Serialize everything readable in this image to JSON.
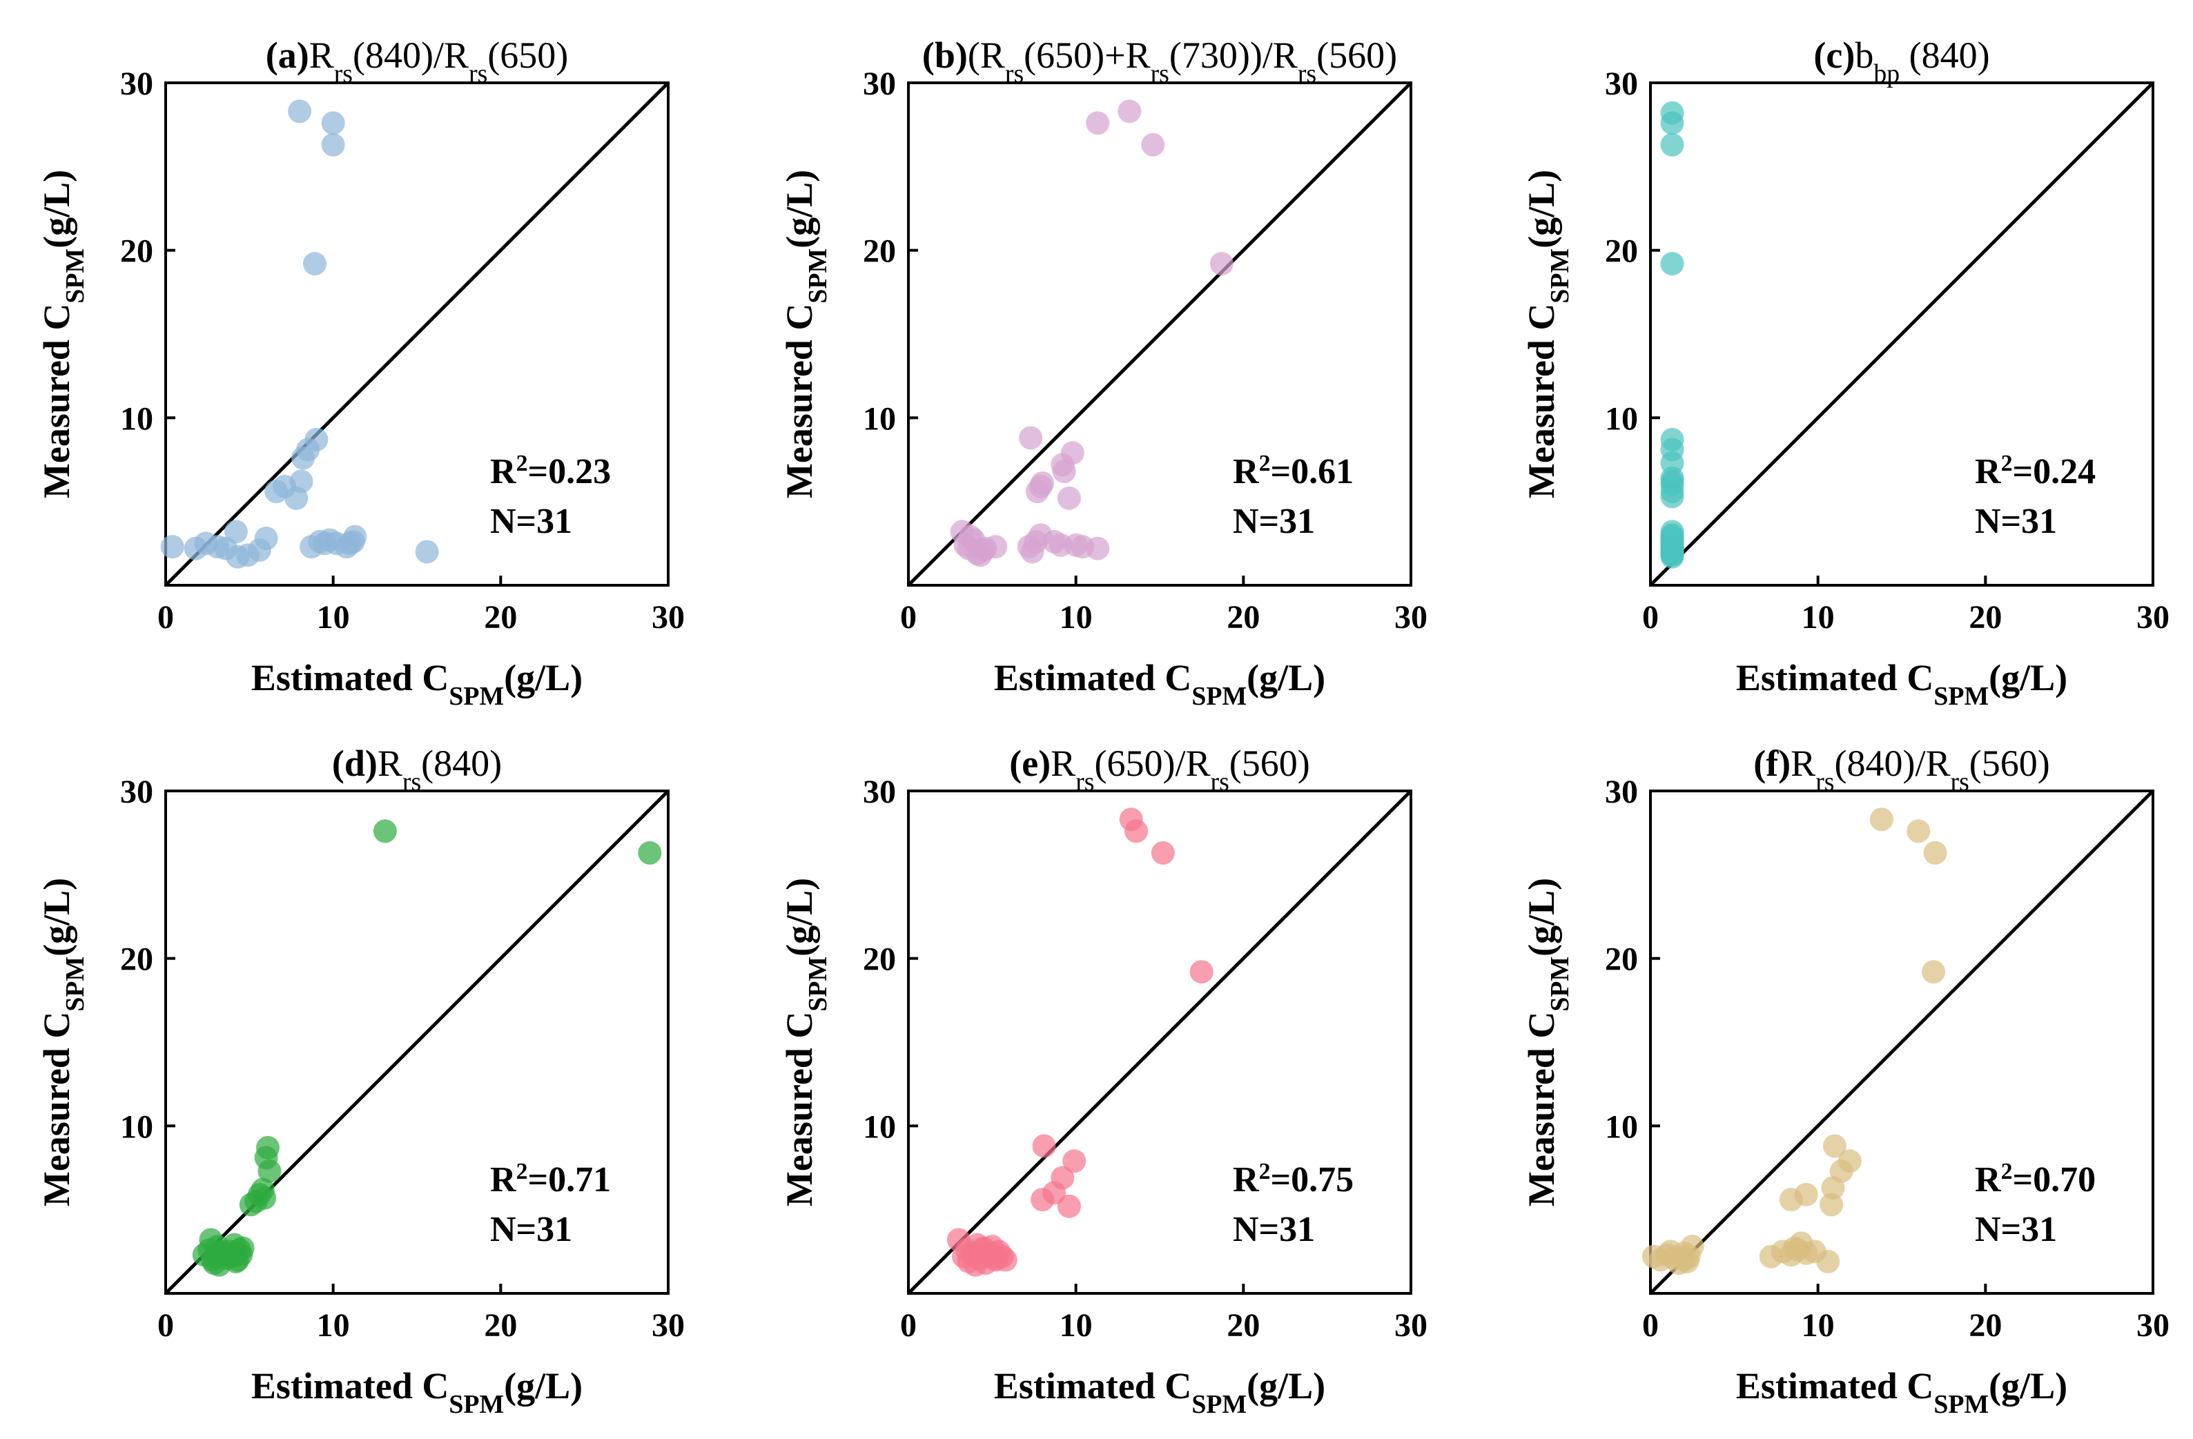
{
  "figure": {
    "x_axis_label": {
      "main": "Estimated C",
      "sub": "SPM",
      "tail": "(g/L)"
    },
    "y_axis_label": {
      "main": "Measured C",
      "sub": "SPM",
      "tail": "(g/L)"
    }
  },
  "chart_data": [
    {
      "id": "a",
      "type": "scatter",
      "title": [
        {
          "t": "(a)",
          "b": true
        },
        {
          "t": "R"
        },
        {
          "t": "rs",
          "sub": true
        },
        {
          "t": "(840)/R"
        },
        {
          "t": "rs",
          "sub": true
        },
        {
          "t": "(650)"
        }
      ],
      "r2": "0.23",
      "n": "31",
      "color": "#8fb5d9",
      "xlim": [
        0,
        30
      ],
      "ylim": [
        0,
        30
      ],
      "xticks": [
        0,
        10,
        20,
        30
      ],
      "yticks": [
        10,
        20,
        30
      ],
      "points": [
        [
          0.4,
          2.3
        ],
        [
          1.8,
          2.2
        ],
        [
          2.4,
          2.5
        ],
        [
          3.1,
          2.3
        ],
        [
          3.6,
          2.2
        ],
        [
          4.2,
          3.2
        ],
        [
          4.3,
          1.7
        ],
        [
          4.9,
          1.8
        ],
        [
          5.6,
          2.1
        ],
        [
          6.0,
          2.8
        ],
        [
          6.6,
          5.6
        ],
        [
          7.1,
          5.9
        ],
        [
          7.8,
          5.2
        ],
        [
          8.1,
          6.2
        ],
        [
          8.2,
          7.6
        ],
        [
          8.5,
          8.1
        ],
        [
          8.7,
          2.3
        ],
        [
          9.0,
          8.7
        ],
        [
          9.2,
          2.6
        ],
        [
          9.8,
          2.7
        ],
        [
          10.2,
          2.5
        ],
        [
          10.8,
          2.3
        ],
        [
          11.0,
          2.5
        ],
        [
          11.2,
          2.6
        ],
        [
          11.3,
          2.9
        ],
        [
          15.6,
          2.0
        ],
        [
          8.0,
          28.3
        ],
        [
          10.0,
          27.6
        ],
        [
          10.0,
          26.3
        ],
        [
          8.9,
          19.2
        ],
        [
          9.5,
          2.5
        ]
      ]
    },
    {
      "id": "b",
      "type": "scatter",
      "title": [
        {
          "t": "(b)",
          "b": true
        },
        {
          "t": "(R"
        },
        {
          "t": "rs",
          "sub": true
        },
        {
          "t": "(650)+R"
        },
        {
          "t": "rs",
          "sub": true
        },
        {
          "t": "(730))/R"
        },
        {
          "t": "rs",
          "sub": true
        },
        {
          "t": "(560)"
        }
      ],
      "r2": "0.61",
      "n": "31",
      "color": "#d6a2d0",
      "xlim": [
        0,
        30
      ],
      "ylim": [
        0,
        30
      ],
      "xticks": [
        0,
        10,
        20,
        30
      ],
      "yticks": [
        10,
        20,
        30
      ],
      "points": [
        [
          3.2,
          3.2
        ],
        [
          3.4,
          2.4
        ],
        [
          3.6,
          2.2
        ],
        [
          3.9,
          2.7
        ],
        [
          4.1,
          1.9
        ],
        [
          4.3,
          1.8
        ],
        [
          4.6,
          2.2
        ],
        [
          5.2,
          2.3
        ],
        [
          7.2,
          2.3
        ],
        [
          7.4,
          2.0
        ],
        [
          7.6,
          2.6
        ],
        [
          7.9,
          3.0
        ],
        [
          8.7,
          2.6
        ],
        [
          9.1,
          2.4
        ],
        [
          7.3,
          8.8
        ],
        [
          7.7,
          5.6
        ],
        [
          8.0,
          6.1
        ],
        [
          9.3,
          6.8
        ],
        [
          9.6,
          5.2
        ],
        [
          9.8,
          7.9
        ],
        [
          10.4,
          2.3
        ],
        [
          11.3,
          2.2
        ],
        [
          11.3,
          27.6
        ],
        [
          13.2,
          28.3
        ],
        [
          14.6,
          26.3
        ],
        [
          18.7,
          19.2
        ],
        [
          3.7,
          2.9
        ],
        [
          4.5,
          2.1
        ],
        [
          7.9,
          5.9
        ],
        [
          9.2,
          7.2
        ],
        [
          10.0,
          2.4
        ]
      ]
    },
    {
      "id": "c",
      "type": "scatter",
      "title": [
        {
          "t": "(c)",
          "b": true
        },
        {
          "t": "b"
        },
        {
          "t": "bp",
          "sub": true
        },
        {
          "t": " (840)"
        }
      ],
      "r2": "0.24",
      "n": "31",
      "color": "#4cc3bd",
      "xlim": [
        0,
        30
      ],
      "ylim": [
        0,
        30
      ],
      "xticks": [
        0,
        10,
        20,
        30
      ],
      "yticks": [
        10,
        20,
        30
      ],
      "points": [
        [
          1.3,
          28.2
        ],
        [
          1.3,
          27.6
        ],
        [
          1.3,
          26.3
        ],
        [
          1.3,
          19.2
        ],
        [
          1.3,
          8.7
        ],
        [
          1.3,
          8.1
        ],
        [
          1.3,
          7.3
        ],
        [
          1.3,
          6.4
        ],
        [
          1.3,
          6.0
        ],
        [
          1.3,
          5.6
        ],
        [
          1.3,
          5.3
        ],
        [
          1.3,
          3.2
        ],
        [
          1.3,
          3.0
        ],
        [
          1.3,
          2.8
        ],
        [
          1.3,
          2.6
        ],
        [
          1.3,
          2.5
        ],
        [
          1.3,
          2.4
        ],
        [
          1.3,
          2.3
        ],
        [
          1.3,
          2.2
        ],
        [
          1.3,
          2.1
        ],
        [
          1.3,
          2.0
        ],
        [
          1.3,
          1.9
        ],
        [
          1.3,
          1.8
        ],
        [
          1.3,
          1.7
        ],
        [
          1.3,
          2.9
        ],
        [
          1.3,
          2.7
        ],
        [
          1.3,
          2.35
        ],
        [
          1.3,
          2.15
        ],
        [
          1.3,
          1.95
        ],
        [
          1.3,
          1.85
        ],
        [
          1.3,
          6.2
        ]
      ]
    },
    {
      "id": "d",
      "type": "scatter",
      "title": [
        {
          "t": "(d)",
          "b": true
        },
        {
          "t": "R"
        },
        {
          "t": "rs",
          "sub": true
        },
        {
          "t": "(840)"
        }
      ],
      "r2": "0.71",
      "n": "31",
      "color": "#2eab3e",
      "xlim": [
        0,
        30
      ],
      "ylim": [
        0,
        30
      ],
      "xticks": [
        0,
        10,
        20,
        30
      ],
      "yticks": [
        10,
        20,
        30
      ],
      "points": [
        [
          2.3,
          2.3
        ],
        [
          2.6,
          2.6
        ],
        [
          2.7,
          3.2
        ],
        [
          2.8,
          2.0
        ],
        [
          2.9,
          1.8
        ],
        [
          3.0,
          2.2
        ],
        [
          3.1,
          2.8
        ],
        [
          3.2,
          1.7
        ],
        [
          3.4,
          2.4
        ],
        [
          3.6,
          2.1
        ],
        [
          3.8,
          2.5
        ],
        [
          4.0,
          2.2
        ],
        [
          4.1,
          2.9
        ],
        [
          4.2,
          1.9
        ],
        [
          4.4,
          2.6
        ],
        [
          4.5,
          2.3
        ],
        [
          4.6,
          2.7
        ],
        [
          4.3,
          2.0
        ],
        [
          5.1,
          5.3
        ],
        [
          5.4,
          5.5
        ],
        [
          5.6,
          5.9
        ],
        [
          5.8,
          6.2
        ],
        [
          5.9,
          5.7
        ],
        [
          6.0,
          8.1
        ],
        [
          6.1,
          8.7
        ],
        [
          6.2,
          7.3
        ],
        [
          13.1,
          27.6
        ],
        [
          28.9,
          26.3
        ],
        [
          3.3,
          2.5
        ],
        [
          3.9,
          2.3
        ],
        [
          4.2,
          2.4
        ]
      ]
    },
    {
      "id": "e",
      "type": "scatter",
      "title": [
        {
          "t": "(e)",
          "b": true
        },
        {
          "t": "R"
        },
        {
          "t": "rs",
          "sub": true
        },
        {
          "t": "(650)/R"
        },
        {
          "t": "rs",
          "sub": true
        },
        {
          "t": "(560)"
        }
      ],
      "r2": "0.75",
      "n": "31",
      "color": "#f5758b",
      "xlim": [
        0,
        30
      ],
      "ylim": [
        0,
        30
      ],
      "xticks": [
        0,
        10,
        20,
        30
      ],
      "yticks": [
        10,
        20,
        30
      ],
      "points": [
        [
          3.0,
          3.2
        ],
        [
          3.3,
          2.2
        ],
        [
          3.5,
          2.6
        ],
        [
          3.6,
          1.9
        ],
        [
          3.8,
          2.4
        ],
        [
          4.0,
          1.7
        ],
        [
          4.2,
          2.1
        ],
        [
          4.4,
          2.6
        ],
        [
          4.6,
          1.8
        ],
        [
          4.8,
          2.3
        ],
        [
          5.0,
          2.8
        ],
        [
          5.2,
          2.0
        ],
        [
          5.4,
          2.5
        ],
        [
          5.6,
          2.2
        ],
        [
          5.8,
          2.0
        ],
        [
          4.1,
          2.9
        ],
        [
          4.7,
          2.2
        ],
        [
          5.1,
          2.4
        ],
        [
          8.1,
          8.8
        ],
        [
          8.0,
          5.6
        ],
        [
          8.7,
          6.0
        ],
        [
          9.2,
          6.9
        ],
        [
          9.6,
          5.2
        ],
        [
          9.9,
          7.9
        ],
        [
          13.3,
          28.3
        ],
        [
          13.6,
          27.6
        ],
        [
          15.2,
          26.3
        ],
        [
          17.5,
          19.2
        ],
        [
          3.9,
          2.3
        ],
        [
          5.3,
          2.1
        ],
        [
          4.5,
          2.7
        ]
      ]
    },
    {
      "id": "f",
      "type": "scatter",
      "title": [
        {
          "t": "(f)",
          "b": true
        },
        {
          "t": "R"
        },
        {
          "t": "rs",
          "sub": true
        },
        {
          "t": "(840)/R"
        },
        {
          "t": "rs",
          "sub": true
        },
        {
          "t": "(560)"
        }
      ],
      "r2": "0.70",
      "n": "31",
      "color": "#d9bd80",
      "xlim": [
        0,
        30
      ],
      "ylim": [
        0,
        30
      ],
      "xticks": [
        0,
        10,
        20,
        30
      ],
      "yticks": [
        10,
        20,
        30
      ],
      "points": [
        [
          0.2,
          2.2
        ],
        [
          0.6,
          2.0
        ],
        [
          1.0,
          2.3
        ],
        [
          1.4,
          2.1
        ],
        [
          1.7,
          1.8
        ],
        [
          2.0,
          2.4
        ],
        [
          2.3,
          2.2
        ],
        [
          2.5,
          2.8
        ],
        [
          2.0,
          2.0
        ],
        [
          7.2,
          2.2
        ],
        [
          7.9,
          2.5
        ],
        [
          8.4,
          2.3
        ],
        [
          8.8,
          2.6
        ],
        [
          9.0,
          3.0
        ],
        [
          9.3,
          2.4
        ],
        [
          10.6,
          1.9
        ],
        [
          8.4,
          5.6
        ],
        [
          9.3,
          5.9
        ],
        [
          10.8,
          5.3
        ],
        [
          10.9,
          6.3
        ],
        [
          11.0,
          8.8
        ],
        [
          11.4,
          7.3
        ],
        [
          11.9,
          7.9
        ],
        [
          13.8,
          28.3
        ],
        [
          16.0,
          27.6
        ],
        [
          17.0,
          26.3
        ],
        [
          16.9,
          19.2
        ],
        [
          8.6,
          2.7
        ],
        [
          1.2,
          2.5
        ],
        [
          2.2,
          1.9
        ],
        [
          9.8,
          2.5
        ]
      ]
    }
  ]
}
